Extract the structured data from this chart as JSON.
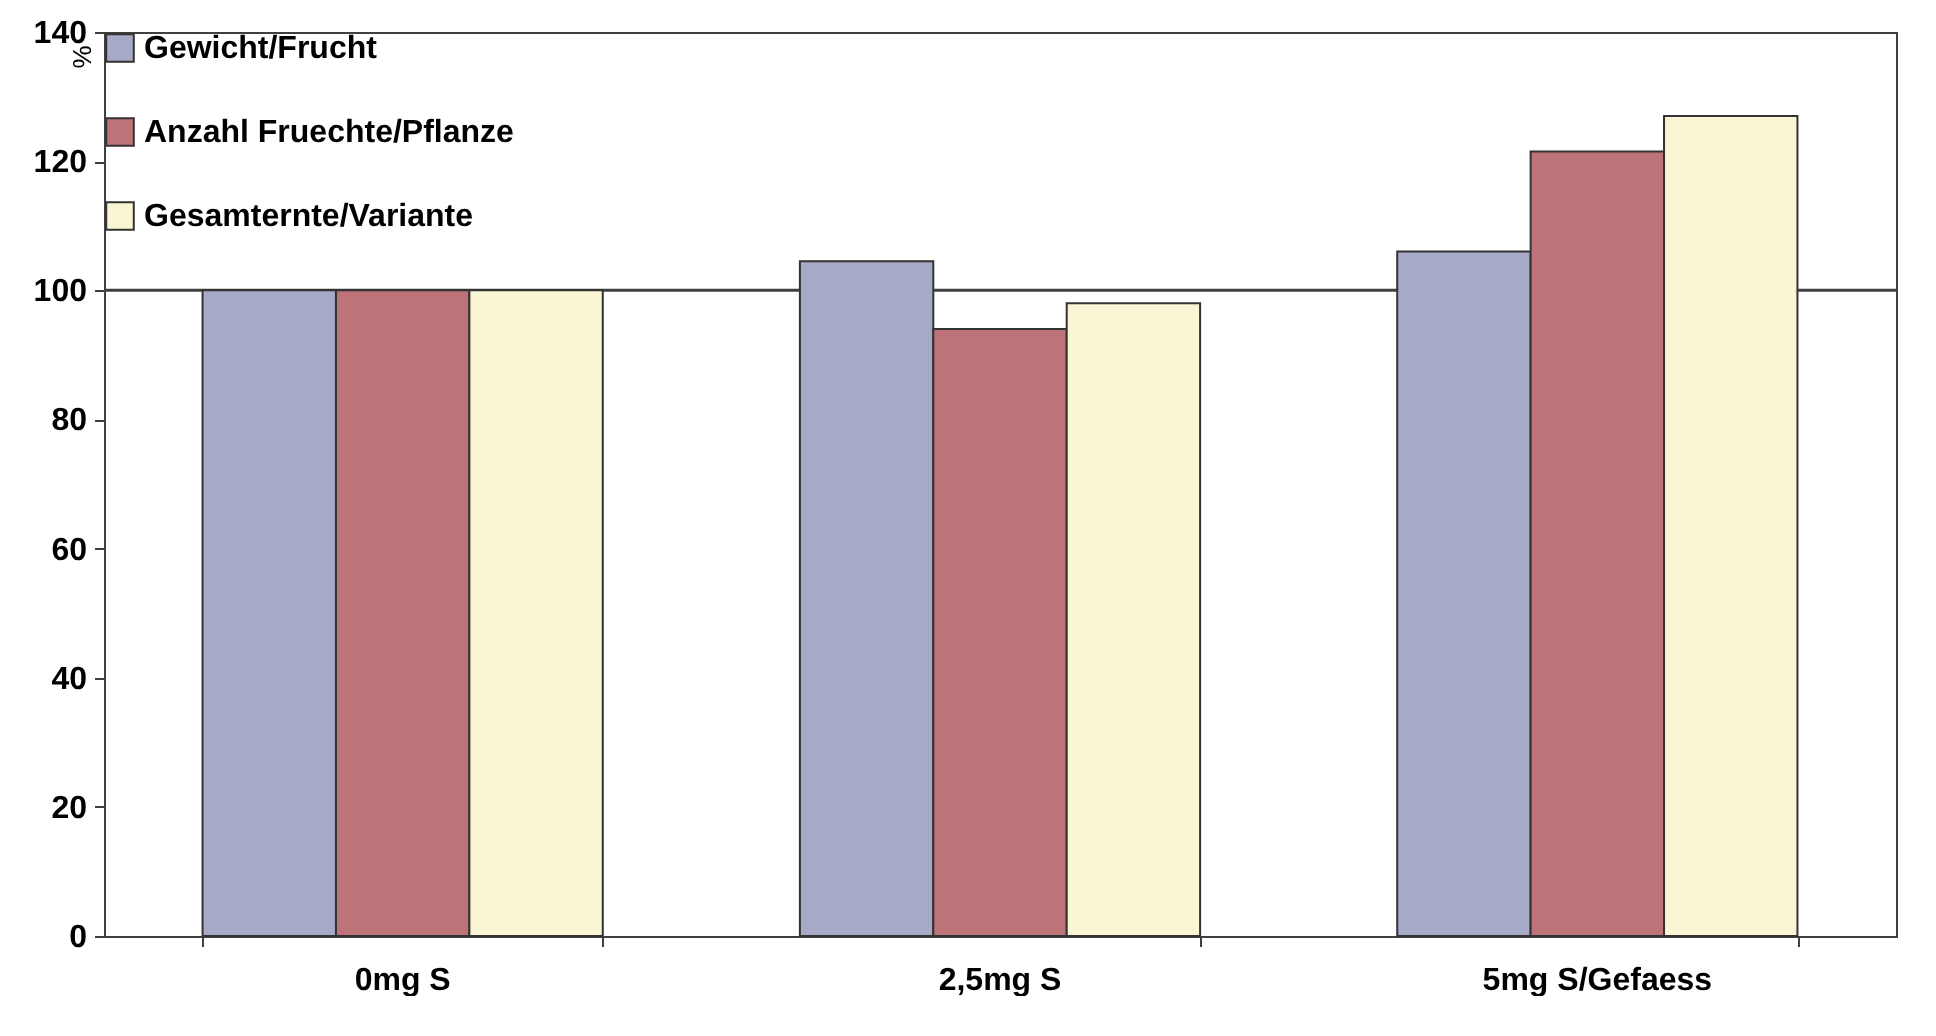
{
  "chart_data": {
    "type": "bar",
    "ylabel": "%",
    "categories": [
      "0mg S",
      "2,5mg S",
      "5mg S/Gefaess"
    ],
    "series": [
      {
        "name": "Gewicht/Frucht",
        "color": "#a6aac6",
        "values": [
          100,
          104.5,
          106
        ]
      },
      {
        "name": "Anzahl Fruechte/Pflanze",
        "color": "#be7378",
        "values": [
          100,
          94,
          121.5
        ]
      },
      {
        "name": "Gesamternte/Variante",
        "color": "#faf5d4",
        "values": [
          100,
          98,
          127
        ]
      }
    ],
    "ylim": [
      0,
      140
    ],
    "yticks": [
      0,
      20,
      40,
      60,
      80,
      100,
      120,
      140
    ],
    "grid": false,
    "legend": "top left",
    "ref_lines": [
      {
        "axis": "y",
        "value": 100,
        "label": null,
        "color": "#404040"
      }
    ]
  }
}
